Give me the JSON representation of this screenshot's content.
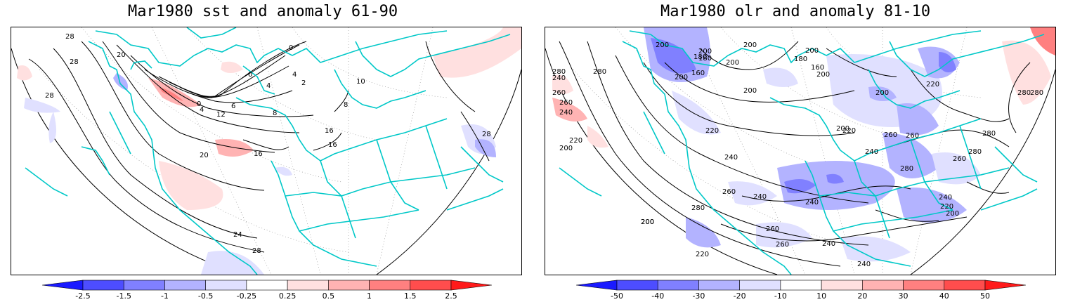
{
  "panels": [
    {
      "title": "Mar1980 sst and anomaly 61-90",
      "colorbar": {
        "ticks": [
          "-2.5",
          "-1.5",
          "-1",
          "-0.5",
          "-0.25",
          "0.25",
          "0.5",
          "1",
          "1.5",
          "2.5"
        ],
        "colors": [
          "#1a1aff",
          "#4d4dff",
          "#8080ff",
          "#b3b3ff",
          "#e0e0ff",
          "#ffffff",
          "#ffe0e0",
          "#ffb3b3",
          "#ff8080",
          "#ff4d4d",
          "#ff1a1a"
        ]
      },
      "contour_labels": [
        "28",
        "28",
        "20",
        "28",
        "0",
        "4",
        "6",
        "12",
        "8",
        "0",
        "4",
        "0",
        "2",
        "16",
        "8",
        "16",
        "16",
        "20",
        "24",
        "28",
        "28",
        "10",
        "4"
      ]
    },
    {
      "title": "Mar1980 olr and anomaly 81-10",
      "colorbar": {
        "ticks": [
          "-50",
          "-40",
          "-30",
          "-20",
          "-10",
          "10",
          "20",
          "30",
          "40",
          "50"
        ],
        "colors": [
          "#1a1aff",
          "#4d4dff",
          "#8080ff",
          "#b3b3ff",
          "#e0e0ff",
          "#ffffff",
          "#ffe0e0",
          "#ffb3b3",
          "#ff8080",
          "#ff4d4d",
          "#ff1a1a"
        ]
      },
      "contour_labels": [
        "200",
        "200",
        "180",
        "160",
        "200",
        "200",
        "280",
        "200",
        "180",
        "240",
        "280",
        "180",
        "200",
        "160",
        "200",
        "220",
        "260",
        "260",
        "240",
        "200",
        "200",
        "220",
        "200",
        "240",
        "200",
        "280",
        "220",
        "220",
        "260",
        "240",
        "280",
        "260",
        "280",
        "260",
        "240",
        "260",
        "280",
        "240",
        "220",
        "200",
        "200",
        "280",
        "260",
        "240",
        "260",
        "240",
        "220",
        "240",
        "200",
        "280"
      ]
    }
  ]
}
